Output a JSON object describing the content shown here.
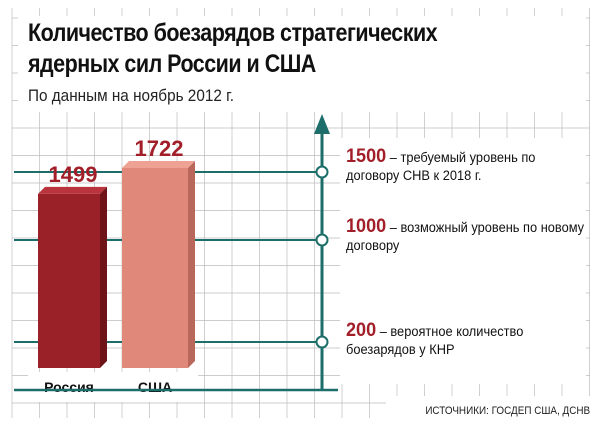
{
  "title": "Количество боезарядов стратегических ядерных сил России и США",
  "subtitle": "По данным на ноябрь 2012 г.",
  "source": "ИСТОЧНИКИ: ГОСДЕП США, ДСНВ",
  "colors": {
    "russia": "#9b2128",
    "usa": "#e0887a",
    "value_label": "#a21f2a",
    "axis": "#1d6e6a",
    "grid": "#bdbdbd"
  },
  "chart_data": {
    "type": "bar",
    "categories": [
      "Россия",
      "США"
    ],
    "values": [
      1499,
      1722
    ],
    "value_labels": [
      "1499",
      "1722"
    ],
    "title": "Количество боезарядов стратегических ядерных сил России и США",
    "subtitle": "По данным на ноябрь 2012 г.",
    "ylim": [
      0,
      1860
    ],
    "grid": true,
    "reference_lines": [
      {
        "value": 1500,
        "label_number": "1500",
        "label_text": "– требуемый уровень по договору СНВ к 2018 г."
      },
      {
        "value": 1000,
        "label_number": "1000",
        "label_text": "– возможный уровень по новому договору"
      },
      {
        "value": 200,
        "label_number": "200",
        "label_text": "– вероятное количество боезарядов у КНР"
      }
    ]
  }
}
